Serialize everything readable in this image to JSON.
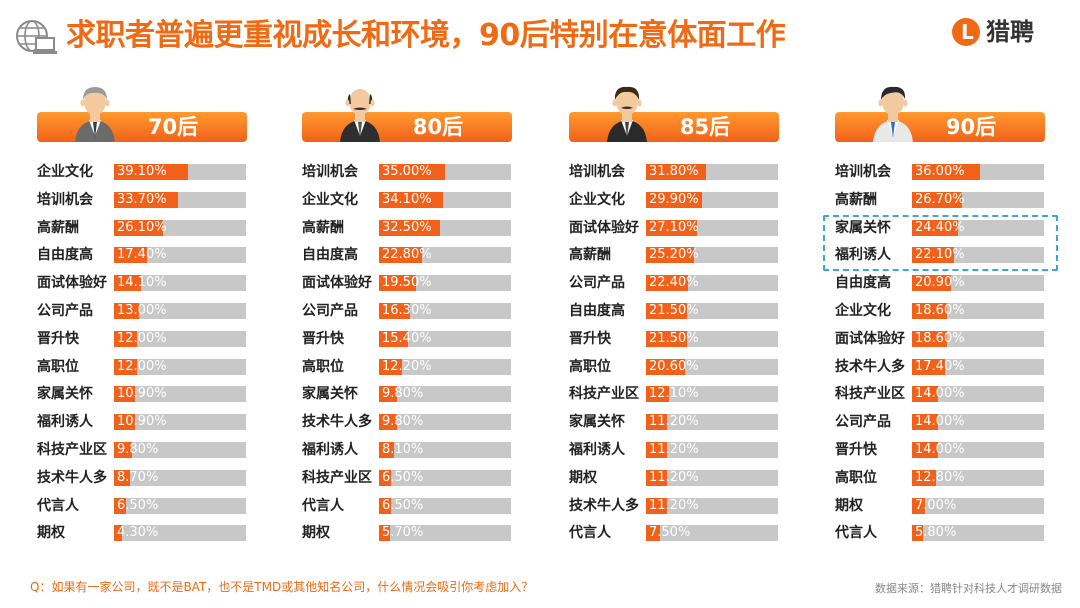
{
  "header": {
    "title": "求职者普遍更重视成长和环境，90后特别在意体面工作",
    "logo_text": "猎聘",
    "logo_mark": "L",
    "icon": "computer-globe-icon"
  },
  "colors": {
    "accent": "#f06a13",
    "bar": "#f2611a",
    "track": "#c8c8c8",
    "highlight": "#3aa6dc"
  },
  "chart_data": [
    {
      "type": "bar",
      "title": "70后",
      "categories": [
        "企业文化",
        "培训机会",
        "高薪酬",
        "自由度高",
        "面试体验好",
        "公司产品",
        "晋升快",
        "高职位",
        "家属关怀",
        "福利诱人",
        "科技产业区",
        "技术牛人多",
        "代言人",
        "期权"
      ],
      "values": [
        39.1,
        33.7,
        26.1,
        17.4,
        14.1,
        13.0,
        12.0,
        12.0,
        10.9,
        10.9,
        9.8,
        8.7,
        6.5,
        4.3
      ],
      "labels": [
        "39.10%",
        "33.70%",
        "26.10%",
        "17.40%",
        "14.10%",
        "13.00%",
        "12.00%",
        "12.00%",
        "10.90%",
        "10.90%",
        "9.80%",
        "8.70%",
        "6.50%",
        "4.30%"
      ],
      "xlim": [
        0,
        70
      ]
    },
    {
      "type": "bar",
      "title": "80后",
      "categories": [
        "培训机会",
        "企业文化",
        "高薪酬",
        "自由度高",
        "面试体验好",
        "公司产品",
        "晋升快",
        "高职位",
        "家属关怀",
        "技术牛人多",
        "福利诱人",
        "科技产业区",
        "代言人",
        "期权"
      ],
      "values": [
        35.0,
        34.1,
        32.5,
        22.8,
        19.5,
        16.3,
        15.4,
        12.2,
        9.8,
        9.8,
        8.1,
        6.5,
        6.5,
        5.7
      ],
      "labels": [
        "35.00%",
        "34.10%",
        "32.50%",
        "22.80%",
        "19.50%",
        "16.30%",
        "15.40%",
        "12.20%",
        "9.80%",
        "9.80%",
        "8.10%",
        "6.50%",
        "6.50%",
        "5.70%"
      ],
      "xlim": [
        0,
        70
      ]
    },
    {
      "type": "bar",
      "title": "85后",
      "categories": [
        "培训机会",
        "企业文化",
        "面试体验好",
        "高薪酬",
        "公司产品",
        "自由度高",
        "晋升快",
        "高职位",
        "科技产业区",
        "家属关怀",
        "福利诱人",
        "期权",
        "技术牛人多",
        "代言人"
      ],
      "values": [
        31.8,
        29.9,
        27.1,
        25.2,
        22.4,
        21.5,
        21.5,
        20.6,
        12.1,
        11.2,
        11.2,
        11.2,
        11.2,
        7.5
      ],
      "labels": [
        "31.80%",
        "29.90%",
        "27.10%",
        "25.20%",
        "22.40%",
        "21.50%",
        "21.50%",
        "20.60%",
        "12.10%",
        "11.20%",
        "11.20%",
        "11.20%",
        "11.20%",
        "7.50%"
      ],
      "xlim": [
        0,
        70
      ]
    },
    {
      "type": "bar",
      "title": "90后",
      "categories": [
        "培训机会",
        "高薪酬",
        "家属关怀",
        "福利诱人",
        "自由度高",
        "企业文化",
        "面试体验好",
        "技术牛人多",
        "科技产业区",
        "公司产品",
        "晋升快",
        "高职位",
        "期权",
        "代言人"
      ],
      "values": [
        36.0,
        26.7,
        24.4,
        22.1,
        20.9,
        18.6,
        18.6,
        17.4,
        14.0,
        14.0,
        14.0,
        12.8,
        7.0,
        5.8
      ],
      "labels": [
        "36.00%",
        "26.70%",
        "24.40%",
        "22.10%",
        "20.90%",
        "18.60%",
        "18.60%",
        "17.40%",
        "14.00%",
        "14.00%",
        "14.00%",
        "12.80%",
        "7.00%",
        "5.80%"
      ],
      "xlim": [
        0,
        70
      ],
      "highlighted": [
        "家属关怀",
        "福利诱人"
      ]
    }
  ],
  "footer": {
    "question": "Q：如果有一家公司，既不是BAT，也不是TMD或其他知名公司，什么情况会吸引你考虑加入？",
    "source": "数据来源：猎聘针对科技人才调研数据"
  }
}
